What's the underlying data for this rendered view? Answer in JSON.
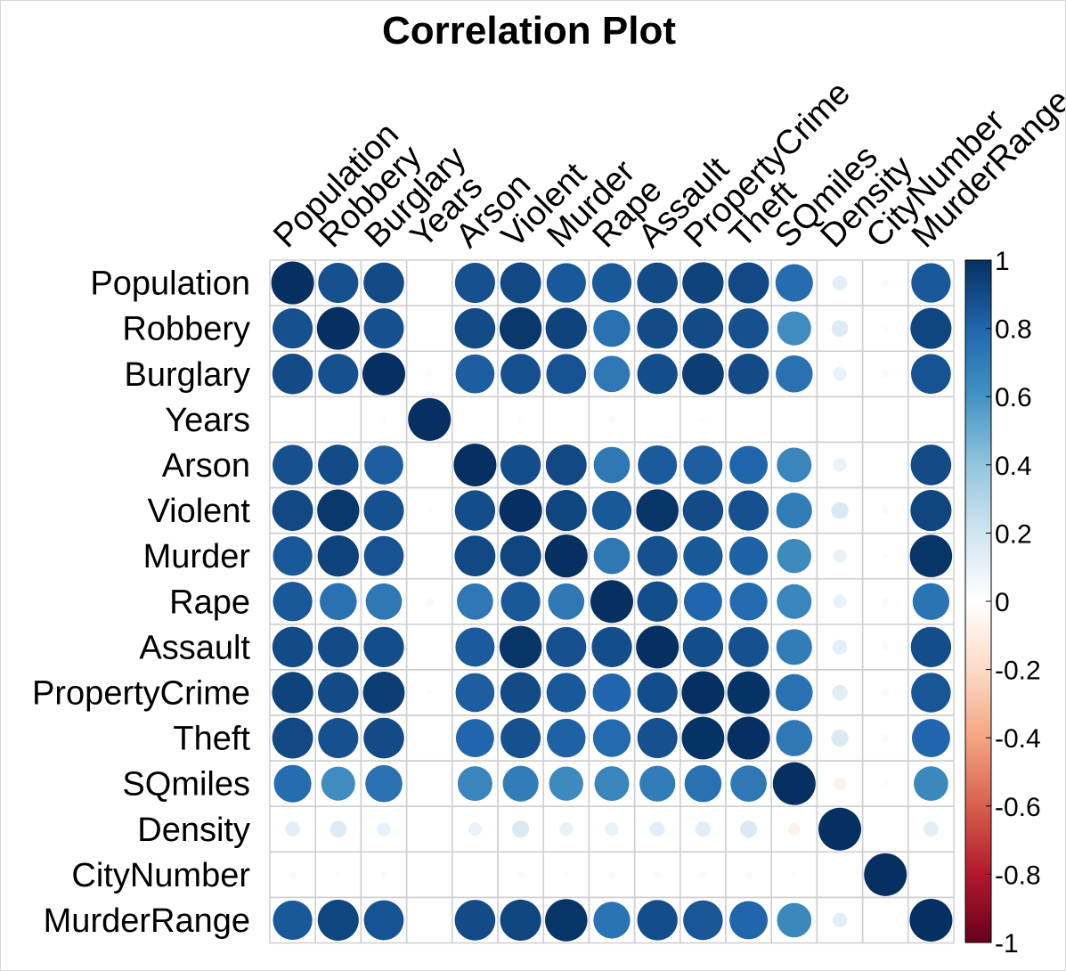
{
  "chart_data": {
    "type": "heatmap",
    "title": "Correlation Plot",
    "variables": [
      "Population",
      "Robbery",
      "Burglary",
      "Years",
      "Arson",
      "Violent",
      "Murder",
      "Rape",
      "Assault",
      "PropertyCrime",
      "Theft",
      "SQmiles",
      "Density",
      "CityNumber",
      "MurderRange"
    ],
    "matrix": [
      [
        1.0,
        0.88,
        0.9,
        0.0,
        0.88,
        0.91,
        0.85,
        0.85,
        0.9,
        0.93,
        0.91,
        0.77,
        0.12,
        0.03,
        0.85
      ],
      [
        0.88,
        1.0,
        0.88,
        0.01,
        0.9,
        0.97,
        0.93,
        0.75,
        0.9,
        0.9,
        0.88,
        0.63,
        0.15,
        0.02,
        0.92
      ],
      [
        0.9,
        0.88,
        1.0,
        -0.03,
        0.83,
        0.88,
        0.87,
        0.72,
        0.89,
        0.95,
        0.9,
        0.75,
        0.1,
        0.03,
        0.87
      ],
      [
        0.0,
        0.01,
        -0.03,
        1.0,
        0.01,
        0.02,
        0.01,
        0.04,
        0.01,
        0.02,
        0.01,
        0.01,
        0.01,
        0.01,
        0.01
      ],
      [
        0.88,
        0.9,
        0.83,
        0.01,
        1.0,
        0.89,
        0.91,
        0.72,
        0.84,
        0.83,
        0.8,
        0.66,
        0.1,
        0.01,
        0.9
      ],
      [
        0.91,
        0.97,
        0.88,
        0.02,
        0.89,
        1.0,
        0.92,
        0.85,
        0.98,
        0.9,
        0.88,
        0.7,
        0.16,
        0.03,
        0.92
      ],
      [
        0.85,
        0.93,
        0.87,
        0.01,
        0.91,
        0.92,
        1.0,
        0.72,
        0.88,
        0.85,
        0.82,
        0.64,
        0.1,
        0.02,
        0.98
      ],
      [
        0.85,
        0.75,
        0.72,
        0.04,
        0.72,
        0.85,
        0.72,
        1.0,
        0.89,
        0.8,
        0.78,
        0.66,
        0.1,
        0.03,
        0.74
      ],
      [
        0.9,
        0.9,
        0.89,
        0.01,
        0.84,
        0.98,
        0.88,
        0.89,
        1.0,
        0.89,
        0.88,
        0.7,
        0.12,
        0.03,
        0.89
      ],
      [
        0.93,
        0.9,
        0.95,
        0.02,
        0.83,
        0.9,
        0.85,
        0.8,
        0.89,
        1.0,
        0.99,
        0.75,
        0.13,
        0.03,
        0.86
      ],
      [
        0.91,
        0.88,
        0.9,
        0.01,
        0.8,
        0.88,
        0.82,
        0.78,
        0.88,
        0.99,
        1.0,
        0.72,
        0.16,
        0.03,
        0.8
      ],
      [
        0.77,
        0.63,
        0.75,
        0.01,
        0.66,
        0.7,
        0.64,
        0.66,
        0.7,
        0.75,
        0.72,
        1.0,
        -0.08,
        0.02,
        0.65
      ],
      [
        0.12,
        0.15,
        0.1,
        0.01,
        0.1,
        0.16,
        0.1,
        0.1,
        0.12,
        0.13,
        0.16,
        -0.08,
        1.0,
        0.01,
        0.12
      ],
      [
        0.03,
        0.02,
        0.03,
        0.01,
        0.01,
        0.03,
        0.02,
        0.03,
        0.03,
        0.03,
        0.03,
        0.02,
        0.01,
        1.0,
        0.01
      ],
      [
        0.85,
        0.92,
        0.87,
        0.01,
        0.9,
        0.92,
        0.98,
        0.74,
        0.89,
        0.86,
        0.8,
        0.65,
        0.12,
        0.01,
        1.0
      ]
    ],
    "colorbar": {
      "range": [
        -1,
        1
      ],
      "tick_labels": [
        "1",
        "0.8",
        "0.6",
        "0.4",
        "0.2",
        "0",
        "-0.2",
        "-0.4",
        "-0.6",
        "-0.8",
        "-1"
      ],
      "colors": [
        "#67001F",
        "#B2182B",
        "#D6604D",
        "#F4A582",
        "#FDDBC7",
        "#FFFFFF",
        "#D1E5F0",
        "#92C5DE",
        "#4393C3",
        "#2166AC",
        "#053061"
      ]
    },
    "grid": true,
    "legend_placement": "right"
  }
}
